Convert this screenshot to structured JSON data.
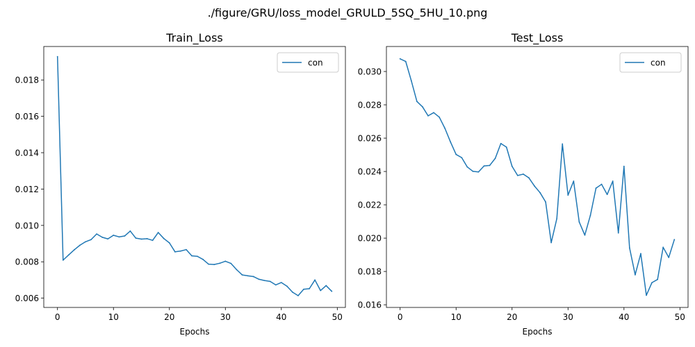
{
  "suptitle": "./figure/GRU/loss_model_GRULD_5SQ_5HU_10.png",
  "series_color": "#1f77b4",
  "chart_data": [
    {
      "type": "line",
      "title": "Train_Loss",
      "xlabel": "Epochs",
      "ylabel": "",
      "xlim": [
        -2.45,
        51.45
      ],
      "ylim": [
        0.00549,
        0.01984
      ],
      "xticks": [
        0,
        10,
        20,
        30,
        40,
        50
      ],
      "yticks": [
        0.006,
        0.008,
        0.01,
        0.012,
        0.014,
        0.016,
        0.018
      ],
      "ytick_labels": [
        "0.006",
        "0.008",
        "0.010",
        "0.012",
        "0.014",
        "0.016",
        "0.018"
      ],
      "legend": "upper right",
      "series": [
        {
          "name": "con",
          "x": [
            0,
            1,
            2,
            3,
            4,
            5,
            6,
            7,
            8,
            9,
            10,
            11,
            12,
            13,
            14,
            15,
            16,
            17,
            18,
            19,
            20,
            21,
            22,
            23,
            24,
            25,
            26,
            27,
            28,
            29,
            30,
            31,
            32,
            33,
            34,
            35,
            36,
            37,
            38,
            39,
            40,
            41,
            42,
            43,
            44,
            45,
            46,
            47,
            48,
            49
          ],
          "y": [
            0.01928,
            0.00809,
            0.00838,
            0.00866,
            0.00891,
            0.0091,
            0.00922,
            0.00953,
            0.00935,
            0.00926,
            0.00946,
            0.00937,
            0.00942,
            0.00969,
            0.0093,
            0.00925,
            0.00927,
            0.00918,
            0.00961,
            0.00928,
            0.00904,
            0.00855,
            0.00859,
            0.00867,
            0.00833,
            0.0083,
            0.00813,
            0.00787,
            0.00785,
            0.00792,
            0.00803,
            0.00791,
            0.00757,
            0.00728,
            0.00723,
            0.00719,
            0.00704,
            0.00697,
            0.00692,
            0.00673,
            0.00686,
            0.00666,
            0.00633,
            0.00614,
            0.00649,
            0.00652,
            0.007,
            0.00642,
            0.00669,
            0.00638
          ]
        }
      ]
    },
    {
      "type": "line",
      "title": "Test_Loss",
      "xlabel": "Epochs",
      "ylabel": "",
      "xlim": [
        -2.45,
        51.45
      ],
      "ylim": [
        0.01584,
        0.0315
      ],
      "xticks": [
        0,
        10,
        20,
        30,
        40,
        50
      ],
      "yticks": [
        0.016,
        0.018,
        0.02,
        0.022,
        0.024,
        0.026,
        0.028,
        0.03
      ],
      "ytick_labels": [
        "0.016",
        "0.018",
        "0.020",
        "0.022",
        "0.024",
        "0.026",
        "0.028",
        "0.030"
      ],
      "legend": "upper right",
      "series": [
        {
          "name": "con",
          "x": [
            0,
            1,
            2,
            3,
            4,
            5,
            6,
            7,
            8,
            9,
            10,
            11,
            12,
            13,
            14,
            15,
            16,
            17,
            18,
            19,
            20,
            21,
            22,
            23,
            24,
            25,
            26,
            27,
            28,
            29,
            30,
            31,
            32,
            33,
            34,
            35,
            36,
            37,
            38,
            39,
            40,
            41,
            42,
            43,
            44,
            45,
            46,
            47,
            48,
            49
          ],
          "y": [
            0.03076,
            0.0306,
            0.02944,
            0.0282,
            0.02788,
            0.02734,
            0.02753,
            0.02726,
            0.02659,
            0.02577,
            0.02502,
            0.02483,
            0.02427,
            0.02401,
            0.02397,
            0.02433,
            0.02436,
            0.02479,
            0.02568,
            0.02546,
            0.02431,
            0.02376,
            0.02384,
            0.02362,
            0.02313,
            0.02273,
            0.02217,
            0.01973,
            0.02117,
            0.02565,
            0.02258,
            0.02342,
            0.02097,
            0.02018,
            0.02137,
            0.023,
            0.02323,
            0.02262,
            0.02342,
            0.02031,
            0.02431,
            0.01941,
            0.0178,
            0.01907,
            0.01657,
            0.01733,
            0.01752,
            0.01945,
            0.01884,
            0.01991
          ]
        }
      ]
    }
  ]
}
